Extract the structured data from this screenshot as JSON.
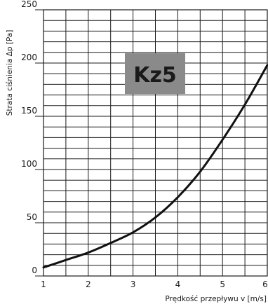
{
  "chart_data": {
    "type": "line",
    "title": "",
    "badge": {
      "label": "Kz5",
      "background": "#8a8a8a",
      "text_color": "#ffffff"
    },
    "xlabel": "Prędkość przepływu v [m/s]",
    "ylabel": "Strata ciśnienia Δp [Pa]",
    "xlim": [
      1,
      6
    ],
    "ylim": [
      0,
      250
    ],
    "x_ticks": [
      1,
      2,
      3,
      4,
      5,
      6
    ],
    "x_tick_labels": [
      "1",
      "2",
      "3",
      "4",
      "5",
      "6"
    ],
    "y_ticks": [
      0,
      50,
      100,
      150,
      200,
      250
    ],
    "y_tick_labels": [
      "0",
      "50",
      "100",
      "150",
      "200",
      "250"
    ],
    "x_minor_step": 0.5,
    "y_minor_step": 10,
    "grid": true,
    "line_color": "#111111",
    "grid_color": "#1a1a1a",
    "series": [
      {
        "x": [
          1.0,
          1.5,
          2.0,
          2.5,
          3.0,
          3.5,
          4.0,
          4.5,
          5.0,
          5.5,
          6.0
        ],
        "values": [
          8,
          15,
          22,
          31,
          41,
          55,
          74,
          98,
          128,
          161,
          198
        ]
      }
    ]
  }
}
